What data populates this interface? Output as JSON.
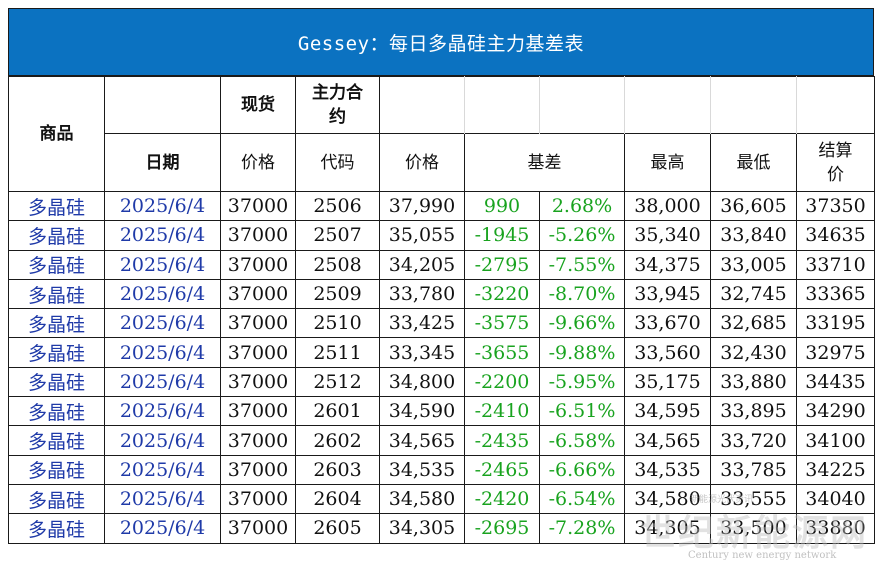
{
  "title": "Gessey：每日多晶硅主力基差表",
  "headers": {
    "product": "商品",
    "date": "日期",
    "spot": "现货",
    "main_contract": "主力合约",
    "price": "价格",
    "code": "代码",
    "futures_price": "价格",
    "basis": "基差",
    "high": "最高",
    "low": "最低",
    "settle": "结算价"
  },
  "rows": [
    {
      "product": "多晶硅",
      "date": "2025/6/4",
      "spot": "37000",
      "code": "2506",
      "price": "37,990",
      "basis": "990",
      "basis_pct": "2.68%",
      "high": "38,000",
      "low": "36,605",
      "settle": "37350"
    },
    {
      "product": "多晶硅",
      "date": "2025/6/4",
      "spot": "37000",
      "code": "2507",
      "price": "35,055",
      "basis": "-1945",
      "basis_pct": "-5.26%",
      "high": "35,340",
      "low": "33,840",
      "settle": "34635"
    },
    {
      "product": "多晶硅",
      "date": "2025/6/4",
      "spot": "37000",
      "code": "2508",
      "price": "34,205",
      "basis": "-2795",
      "basis_pct": "-7.55%",
      "high": "34,375",
      "low": "33,005",
      "settle": "33710"
    },
    {
      "product": "多晶硅",
      "date": "2025/6/4",
      "spot": "37000",
      "code": "2509",
      "price": "33,780",
      "basis": "-3220",
      "basis_pct": "-8.70%",
      "high": "33,945",
      "low": "32,745",
      "settle": "33365"
    },
    {
      "product": "多晶硅",
      "date": "2025/6/4",
      "spot": "37000",
      "code": "2510",
      "price": "33,425",
      "basis": "-3575",
      "basis_pct": "-9.66%",
      "high": "33,670",
      "low": "32,685",
      "settle": "33195"
    },
    {
      "product": "多晶硅",
      "date": "2025/6/4",
      "spot": "37000",
      "code": "2511",
      "price": "33,345",
      "basis": "-3655",
      "basis_pct": "-9.88%",
      "high": "33,560",
      "low": "32,430",
      "settle": "32975"
    },
    {
      "product": "多晶硅",
      "date": "2025/6/4",
      "spot": "37000",
      "code": "2512",
      "price": "34,800",
      "basis": "-2200",
      "basis_pct": "-5.95%",
      "high": "35,175",
      "low": "33,880",
      "settle": "34435"
    },
    {
      "product": "多晶硅",
      "date": "2025/6/4",
      "spot": "37000",
      "code": "2601",
      "price": "34,590",
      "basis": "-2410",
      "basis_pct": "-6.51%",
      "high": "34,595",
      "low": "33,895",
      "settle": "34290"
    },
    {
      "product": "多晶硅",
      "date": "2025/6/4",
      "spot": "37000",
      "code": "2602",
      "price": "34,565",
      "basis": "-2435",
      "basis_pct": "-6.58%",
      "high": "34,565",
      "low": "33,720",
      "settle": "34100"
    },
    {
      "product": "多晶硅",
      "date": "2025/6/4",
      "spot": "37000",
      "code": "2603",
      "price": "34,535",
      "basis": "-2465",
      "basis_pct": "-6.66%",
      "high": "34,535",
      "low": "33,785",
      "settle": "34225"
    },
    {
      "product": "多晶硅",
      "date": "2025/6/4",
      "spot": "37000",
      "code": "2604",
      "price": "34,580",
      "basis": "-2420",
      "basis_pct": "-6.54%",
      "high": "34,580",
      "low": "33,555",
      "settle": "34040"
    },
    {
      "product": "多晶硅",
      "date": "2025/6/4",
      "spot": "37000",
      "code": "2605",
      "price": "34,305",
      "basis": "-2695",
      "basis_pct": "-7.28%",
      "high": "34,305",
      "low": "33,500",
      "settle": "33880"
    }
  ],
  "colors": {
    "title_bg": "#0b72c1",
    "product_text": "#1f3aa8",
    "basis_text": "#19a31f"
  },
  "watermark": {
    "small": "新能源光伏资讯",
    "big": "世纪新能源网",
    "en": "Century new energy network"
  }
}
